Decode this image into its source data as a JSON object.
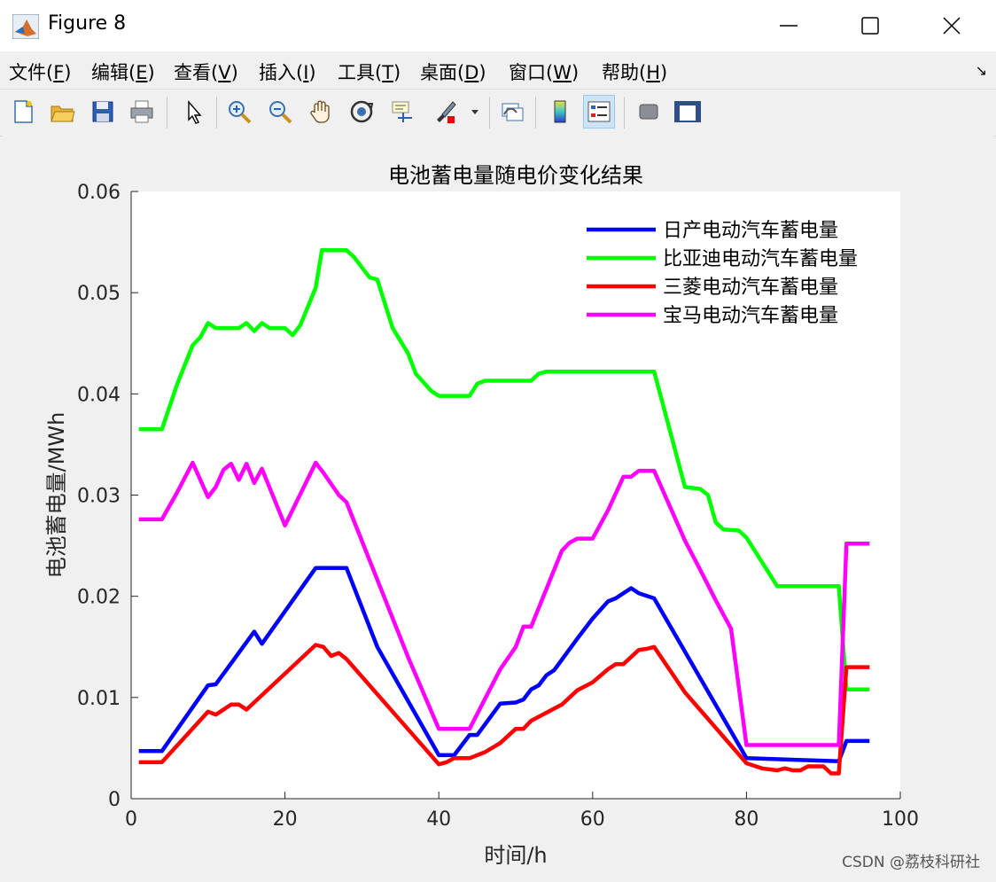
{
  "window": {
    "title": "Figure 8"
  },
  "menu": {
    "items": [
      {
        "label": "文件(",
        "key": "F",
        "end": ")"
      },
      {
        "label": "编辑(",
        "key": "E",
        "end": ")"
      },
      {
        "label": "查看(",
        "key": "V",
        "end": ")"
      },
      {
        "label": "插入(",
        "key": "I",
        "end": ")"
      },
      {
        "label": "工具(",
        "key": "T",
        "end": ")"
      },
      {
        "label": "桌面(",
        "key": "D",
        "end": ")"
      },
      {
        "label": "窗口(",
        "key": "W",
        "end": ")"
      },
      {
        "label": "帮助(",
        "key": "H",
        "end": ")"
      }
    ]
  },
  "toolbar": {
    "buttons": [
      "new-figure-icon",
      "open-file-icon",
      "save-icon",
      "print-icon",
      "pointer-icon",
      "zoom-in-icon",
      "zoom-out-icon",
      "pan-icon",
      "rotate-3d-icon",
      "data-cursor-icon",
      "brush-icon",
      "link-plot-icon",
      "colorbar-icon",
      "legend-icon",
      "hide-plot-tools-icon",
      "show-plot-tools-icon"
    ]
  },
  "colors": {
    "nissan": "#0000ff",
    "byd": "#00ff00",
    "mitsubishi": "#ff0000",
    "bmw": "#ff00ff"
  },
  "chart_data": {
    "type": "line",
    "title": "电池蓄电量随电价变化结果",
    "xlabel": "时间/h",
    "ylabel": "电池蓄电量/MWh",
    "xlim": [
      0,
      100
    ],
    "ylim": [
      0,
      0.06
    ],
    "xticks": [
      0,
      20,
      40,
      60,
      80,
      100
    ],
    "xtick_labels": [
      "0",
      "20",
      "40",
      "60",
      "80",
      "100"
    ],
    "yticks": [
      0,
      0.01,
      0.02,
      0.03,
      0.04,
      0.05,
      0.06
    ],
    "ytick_labels": [
      "0",
      "0.01",
      "0.02",
      "0.03",
      "0.04",
      "0.05",
      "0.06"
    ],
    "grid": false,
    "legend_position": "top-right",
    "series": [
      {
        "name": "日产电动汽车蓄电量",
        "color": "#0000ff",
        "points": [
          [
            1,
            0.0047
          ],
          [
            4,
            0.0047
          ],
          [
            10,
            0.0112
          ],
          [
            11,
            0.0113
          ],
          [
            16,
            0.0165
          ],
          [
            17,
            0.0153
          ],
          [
            24,
            0.0228
          ],
          [
            28,
            0.0228
          ],
          [
            32,
            0.015
          ],
          [
            40,
            0.0043
          ],
          [
            42,
            0.0043
          ],
          [
            44,
            0.0063
          ],
          [
            45,
            0.0063
          ],
          [
            48,
            0.0094
          ],
          [
            50,
            0.0095
          ],
          [
            51,
            0.0098
          ],
          [
            52,
            0.0108
          ],
          [
            53,
            0.0112
          ],
          [
            54,
            0.0122
          ],
          [
            55,
            0.0127
          ],
          [
            58,
            0.0158
          ],
          [
            60,
            0.0178
          ],
          [
            62,
            0.0195
          ],
          [
            63,
            0.0198
          ],
          [
            64,
            0.0203
          ],
          [
            65,
            0.0208
          ],
          [
            66,
            0.0203
          ],
          [
            68,
            0.0198
          ],
          [
            80,
            0.004
          ],
          [
            92,
            0.0037
          ],
          [
            93,
            0.0057
          ],
          [
            96,
            0.0057
          ]
        ]
      },
      {
        "name": "比亚迪电动汽车蓄电量",
        "color": "#00ff00",
        "points": [
          [
            1,
            0.0365
          ],
          [
            4,
            0.0365
          ],
          [
            6,
            0.041
          ],
          [
            8,
            0.0448
          ],
          [
            9,
            0.0456
          ],
          [
            10,
            0.047
          ],
          [
            11,
            0.0465
          ],
          [
            14,
            0.0465
          ],
          [
            15,
            0.047
          ],
          [
            16,
            0.0462
          ],
          [
            17,
            0.047
          ],
          [
            18,
            0.0465
          ],
          [
            20,
            0.0465
          ],
          [
            21,
            0.0458
          ],
          [
            22,
            0.0468
          ],
          [
            24,
            0.0505
          ],
          [
            24.8,
            0.0542
          ],
          [
            28,
            0.0542
          ],
          [
            29,
            0.0535
          ],
          [
            31,
            0.0515
          ],
          [
            32,
            0.0513
          ],
          [
            34,
            0.0465
          ],
          [
            36,
            0.044
          ],
          [
            37,
            0.042
          ],
          [
            39,
            0.0403
          ],
          [
            40,
            0.0398
          ],
          [
            44,
            0.0398
          ],
          [
            45,
            0.041
          ],
          [
            46,
            0.0413
          ],
          [
            52,
            0.0413
          ],
          [
            53,
            0.042
          ],
          [
            54,
            0.0422
          ],
          [
            68,
            0.0422
          ],
          [
            72,
            0.0308
          ],
          [
            74,
            0.0306
          ],
          [
            75,
            0.03
          ],
          [
            76,
            0.0273
          ],
          [
            77,
            0.0266
          ],
          [
            79,
            0.0265
          ],
          [
            80,
            0.0258
          ],
          [
            84,
            0.021
          ],
          [
            92,
            0.021
          ],
          [
            93,
            0.0108
          ],
          [
            96,
            0.0108
          ]
        ]
      },
      {
        "name": "三菱电动汽车蓄电量",
        "color": "#ff0000",
        "points": [
          [
            1,
            0.0036
          ],
          [
            4,
            0.0036
          ],
          [
            10,
            0.0086
          ],
          [
            11,
            0.0083
          ],
          [
            13,
            0.0093
          ],
          [
            14,
            0.0093
          ],
          [
            15,
            0.0088
          ],
          [
            24,
            0.0152
          ],
          [
            25,
            0.015
          ],
          [
            26,
            0.0141
          ],
          [
            27,
            0.0144
          ],
          [
            28,
            0.0138
          ],
          [
            40,
            0.0034
          ],
          [
            41,
            0.0036
          ],
          [
            42,
            0.004
          ],
          [
            43,
            0.004
          ],
          [
            44,
            0.004
          ],
          [
            46,
            0.0046
          ],
          [
            48,
            0.0055
          ],
          [
            50,
            0.0069
          ],
          [
            51,
            0.0069
          ],
          [
            52,
            0.0077
          ],
          [
            56,
            0.0093
          ],
          [
            58,
            0.0107
          ],
          [
            60,
            0.0115
          ],
          [
            62,
            0.0128
          ],
          [
            63,
            0.0133
          ],
          [
            64,
            0.0133
          ],
          [
            66,
            0.0147
          ],
          [
            67,
            0.0148
          ],
          [
            68,
            0.015
          ],
          [
            72,
            0.0105
          ],
          [
            80,
            0.0035
          ],
          [
            82,
            0.003
          ],
          [
            84,
            0.0028
          ],
          [
            85,
            0.003
          ],
          [
            86,
            0.0028
          ],
          [
            87,
            0.0028
          ],
          [
            88,
            0.0032
          ],
          [
            89,
            0.0032
          ],
          [
            90,
            0.0032
          ],
          [
            91,
            0.0025
          ],
          [
            92,
            0.0025
          ],
          [
            93,
            0.013
          ],
          [
            96,
            0.013
          ]
        ]
      },
      {
        "name": "宝马电动汽车蓄电量",
        "color": "#ff00ff",
        "points": [
          [
            1,
            0.0276
          ],
          [
            4,
            0.0276
          ],
          [
            6,
            0.0303
          ],
          [
            8,
            0.0332
          ],
          [
            10,
            0.0298
          ],
          [
            11,
            0.0308
          ],
          [
            12,
            0.0325
          ],
          [
            13,
            0.0331
          ],
          [
            14,
            0.0315
          ],
          [
            15,
            0.0331
          ],
          [
            16,
            0.0312
          ],
          [
            17,
            0.0326
          ],
          [
            20,
            0.027
          ],
          [
            24,
            0.0332
          ],
          [
            25,
            0.0322
          ],
          [
            27,
            0.03
          ],
          [
            28,
            0.0293
          ],
          [
            36,
            0.014
          ],
          [
            40,
            0.0069
          ],
          [
            44,
            0.0069
          ],
          [
            48,
            0.0128
          ],
          [
            50,
            0.015
          ],
          [
            51,
            0.017
          ],
          [
            52,
            0.017
          ],
          [
            56,
            0.0245
          ],
          [
            57,
            0.0253
          ],
          [
            58,
            0.0257
          ],
          [
            60,
            0.0257
          ],
          [
            62,
            0.0285
          ],
          [
            64,
            0.0318
          ],
          [
            65,
            0.0318
          ],
          [
            66,
            0.0324
          ],
          [
            68,
            0.0324
          ],
          [
            72,
            0.0255
          ],
          [
            74,
            0.0226
          ],
          [
            76,
            0.0196
          ],
          [
            78,
            0.0168
          ],
          [
            80,
            0.0053
          ],
          [
            92,
            0.0053
          ],
          [
            93,
            0.0252
          ],
          [
            96,
            0.0252
          ]
        ]
      }
    ]
  },
  "watermark": "CSDN @荔枝科研社"
}
